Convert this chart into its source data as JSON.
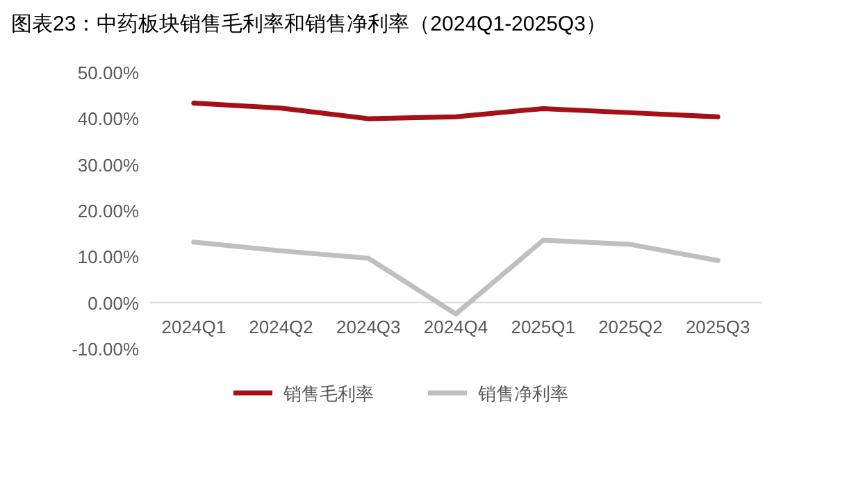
{
  "chart_data": {
    "type": "line",
    "title": "图表23：中药板块销售毛利率和销售净利率（2024Q1-2025Q3）",
    "categories": [
      "2024Q1",
      "2024Q2",
      "2024Q3",
      "2024Q4",
      "2025Q1",
      "2025Q2",
      "2025Q3"
    ],
    "series": [
      {
        "name": "销售毛利率",
        "color": "#a50f15",
        "values": [
          43.3,
          42.2,
          39.9,
          40.3,
          42.1,
          41.2,
          40.3
        ]
      },
      {
        "name": "销售净利率",
        "color": "#bfbfbf",
        "values": [
          13.1,
          11.2,
          9.6,
          -2.5,
          13.5,
          12.6,
          9.1
        ]
      }
    ],
    "ylim": [
      -10,
      50
    ],
    "yticks": [
      {
        "value": -10,
        "label": "-10.00%"
      },
      {
        "value": 0,
        "label": "0.00%"
      },
      {
        "value": 10,
        "label": "10.00%"
      },
      {
        "value": 20,
        "label": "20.00%"
      },
      {
        "value": 30,
        "label": "30.00%"
      },
      {
        "value": 40,
        "label": "40.00%"
      },
      {
        "value": 50,
        "label": "50.00%"
      }
    ],
    "legend": "bottom",
    "grid": false,
    "marker": "none",
    "line_style": "solid"
  }
}
